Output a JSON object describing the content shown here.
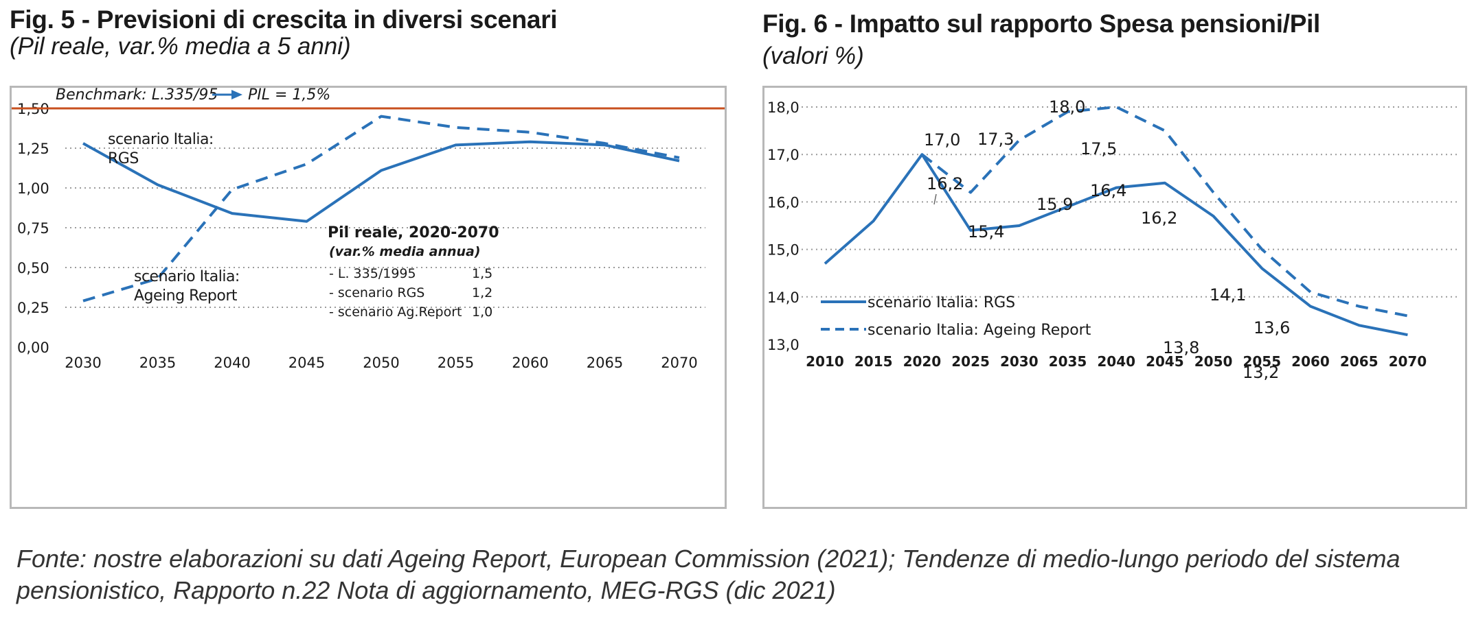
{
  "figures": [
    {
      "title": "Fig. 5 - Previsioni di crescita in diversi scenari",
      "subtitle": "(Pil reale, var.% media a 5 anni)"
    },
    {
      "title": "Fig. 6 - Impatto sul rapporto Spesa pensioni/Pil",
      "subtitle": "(valori %)"
    }
  ],
  "source": "Fonte: nostre elaborazioni su dati Ageing Report, European Commission (2021); Tendenze di medio-lungo periodo del sistema pensionistico, Rapporto n.22 Nota di aggiornamento, MEG-RGS (dic 2021)",
  "colors": {
    "line": "#2a72b8",
    "benchmark": "#c8501e",
    "grid": "#9a9a9a",
    "text": "#1a1a1a"
  },
  "chart_data": [
    {
      "type": "line",
      "x": [
        "2030",
        "2035",
        "2040",
        "2045",
        "2050",
        "2055",
        "2060",
        "2065",
        "2070"
      ],
      "ylim": [
        0,
        1.5
      ],
      "yticks": [
        "0,00",
        "0,25",
        "0,50",
        "0,75",
        "1,00",
        "1,25",
        "1,50"
      ],
      "grid": true,
      "benchmark": {
        "value": 1.5,
        "label_a": "Benchmark: L.335/95",
        "label_b": "PIL = 1,5%"
      },
      "series": [
        {
          "name": "scenario Italia: RGS",
          "label_lines": [
            "scenario Italia:",
            "RGS"
          ],
          "style": "solid",
          "values": [
            1.28,
            1.02,
            0.84,
            0.79,
            1.11,
            1.27,
            1.29,
            1.27,
            1.17
          ]
        },
        {
          "name": "scenario Italia: Ageing Report",
          "label_lines": [
            "scenario Italia:",
            "Ageing Report"
          ],
          "style": "dashed",
          "values": [
            0.29,
            0.43,
            0.99,
            1.15,
            1.45,
            1.38,
            1.35,
            1.28,
            1.19
          ]
        }
      ],
      "inset": {
        "title": "Pil reale, 2020-2070",
        "subtitle": "(var.% media annua)",
        "rows": [
          {
            "label": "- L. 335/1995",
            "value": "1,5"
          },
          {
            "label": "- scenario RGS",
            "value": "1,2"
          },
          {
            "label": "- scenario Ag.Report",
            "value": "1,0"
          }
        ]
      }
    },
    {
      "type": "line",
      "x": [
        "2010",
        "2015",
        "2020",
        "2025",
        "2030",
        "2035",
        "2040",
        "2045",
        "2050",
        "2055",
        "2060",
        "2065",
        "2070"
      ],
      "ylim": [
        13,
        18
      ],
      "yticks": [
        "13,0",
        "14,0",
        "15,0",
        "16,0",
        "17,0",
        "18,0"
      ],
      "grid": true,
      "legend": "bottom-left",
      "series": [
        {
          "name": "scenario Italia: RGS",
          "style": "solid",
          "values": [
            14.7,
            15.6,
            17.0,
            15.4,
            15.5,
            15.9,
            16.3,
            16.4,
            15.7,
            14.6,
            13.8,
            13.4,
            13.2
          ]
        },
        {
          "name": "scenario Italia: Ageing Report",
          "style": "dashed",
          "values": [
            null,
            null,
            17.0,
            16.2,
            17.3,
            17.9,
            18.0,
            17.5,
            16.2,
            15.0,
            14.1,
            13.8,
            13.6
          ]
        }
      ],
      "data_labels": [
        "17,0",
        "16,2",
        "17,3",
        "18,0",
        "17,5",
        "15,4",
        "15,9",
        "16,4",
        "16,2",
        "14,1",
        "13,6",
        "13,8",
        "13,2"
      ]
    }
  ]
}
